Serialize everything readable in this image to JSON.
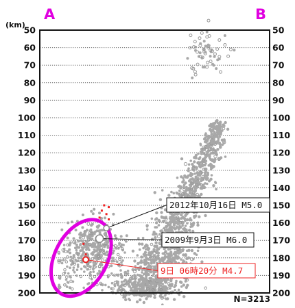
{
  "chart_data": {
    "type": "scatter",
    "axis_unit": "(km)",
    "corner_left": "A",
    "corner_right": "B",
    "count_label": "N=3213",
    "ylim": [
      50,
      200
    ],
    "y_ticks": [
      50,
      60,
      70,
      80,
      90,
      100,
      110,
      120,
      130,
      140,
      150,
      160,
      170,
      180,
      190,
      200
    ],
    "grid": "dotted horizontal",
    "clusters": [
      {
        "description": "deep band A to B",
        "x_start": 0.47,
        "x_end": 0.78,
        "depth_start": 200,
        "depth_end": 103
      },
      {
        "description": "shallow group near B",
        "x_center": 0.73,
        "depth_center": 63
      }
    ],
    "highlight_region": {
      "x_center": 0.18,
      "depth_center": 180,
      "color": "#e000e0"
    },
    "annotations": [
      {
        "label": "2012年10月16日 M5.0",
        "x": 0.29,
        "depth": 163,
        "color": "#111111"
      },
      {
        "label": "2009年9月3日 M6.0",
        "x": 0.26,
        "depth": 169,
        "color": "#111111"
      },
      {
        "label": "9日 06時20分 M4.7",
        "x": 0.2,
        "depth": 181,
        "color": "#ee2222"
      }
    ],
    "red_points": [
      {
        "x": 0.28,
        "depth": 150
      },
      {
        "x": 0.3,
        "depth": 151
      },
      {
        "x": 0.27,
        "depth": 153
      },
      {
        "x": 0.29,
        "depth": 155
      },
      {
        "x": 0.26,
        "depth": 157
      },
      {
        "x": 0.3,
        "depth": 158
      },
      {
        "x": 0.19,
        "depth": 172
      },
      {
        "x": 0.2,
        "depth": 178
      }
    ],
    "colors": {
      "points": "#a8a8a8",
      "highlight": "#e000e0",
      "red": "#ee2222",
      "frame": "#111111"
    }
  }
}
